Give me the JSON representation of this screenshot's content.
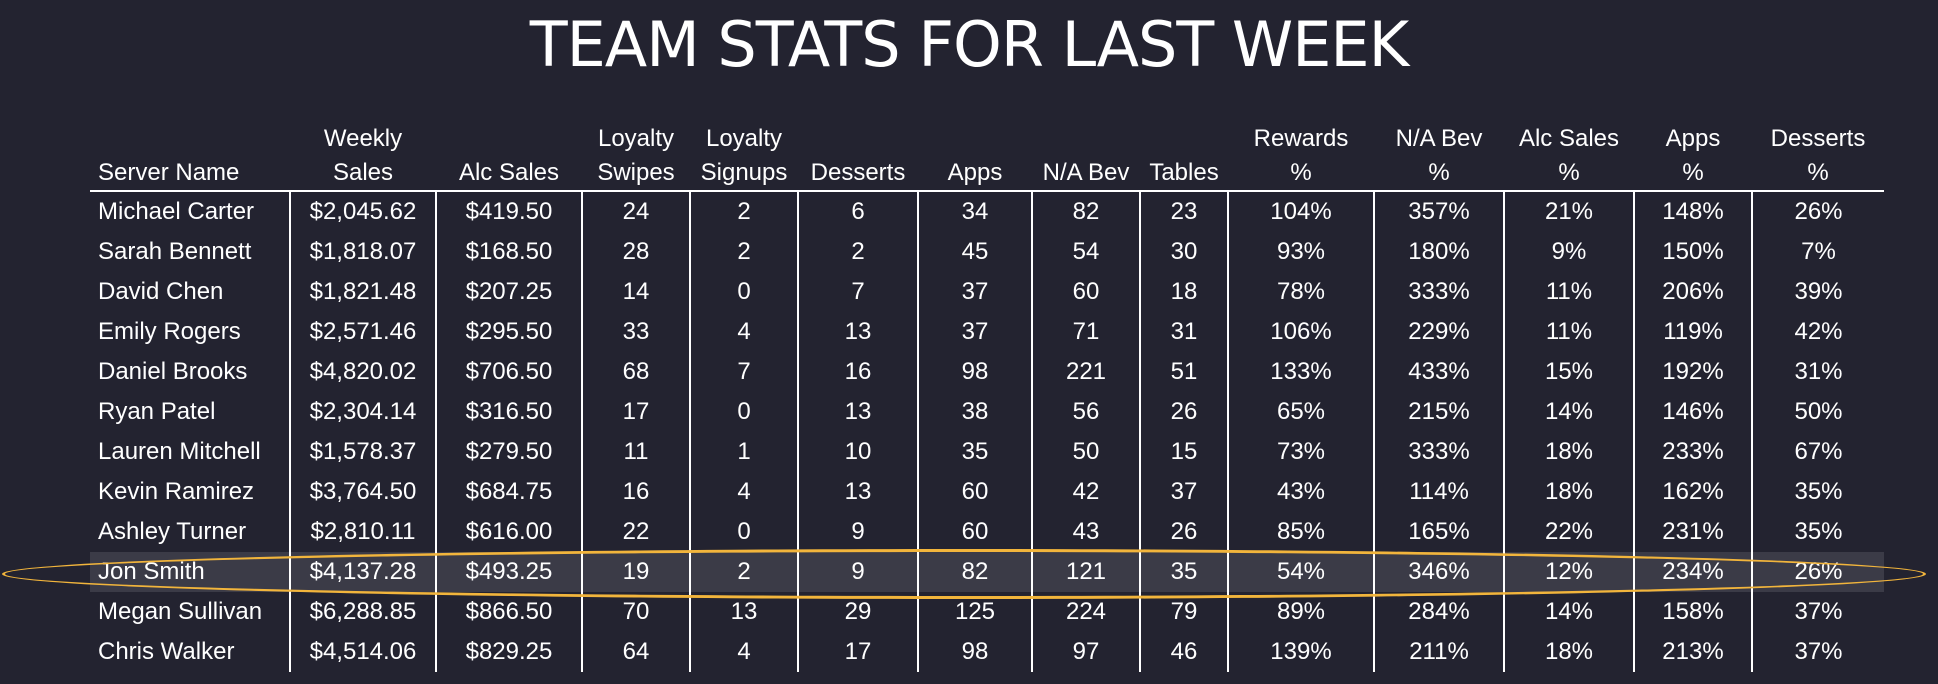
{
  "title": "TEAM STATS FOR LAST WEEK",
  "colors": {
    "background": "#232330",
    "highlight_ring": "#f2b53c",
    "highlight_row": "#3b3b47"
  },
  "columns": [
    "Server Name",
    "Weekly\nSales",
    "Alc Sales",
    "Loyalty\nSwipes",
    "Loyalty\nSignups",
    "Desserts",
    "Apps",
    "N/A Bev",
    "Tables",
    "Rewards\n%",
    "N/A Bev\n%",
    "Alc Sales\n%",
    "Apps\n%",
    "Desserts\n%"
  ],
  "rows": [
    [
      "Michael Carter",
      "$2,045.62",
      "$419.50",
      "24",
      "2",
      "6",
      "34",
      "82",
      "23",
      "104%",
      "357%",
      "21%",
      "148%",
      "26%"
    ],
    [
      "Sarah Bennett",
      "$1,818.07",
      "$168.50",
      "28",
      "2",
      "2",
      "45",
      "54",
      "30",
      "93%",
      "180%",
      "9%",
      "150%",
      "7%"
    ],
    [
      "David Chen",
      "$1,821.48",
      "$207.25",
      "14",
      "0",
      "7",
      "37",
      "60",
      "18",
      "78%",
      "333%",
      "11%",
      "206%",
      "39%"
    ],
    [
      "Emily Rogers",
      "$2,571.46",
      "$295.50",
      "33",
      "4",
      "13",
      "37",
      "71",
      "31",
      "106%",
      "229%",
      "11%",
      "119%",
      "42%"
    ],
    [
      "Daniel Brooks",
      "$4,820.02",
      "$706.50",
      "68",
      "7",
      "16",
      "98",
      "221",
      "51",
      "133%",
      "433%",
      "15%",
      "192%",
      "31%"
    ],
    [
      "Ryan Patel",
      "$2,304.14",
      "$316.50",
      "17",
      "0",
      "13",
      "38",
      "56",
      "26",
      "65%",
      "215%",
      "14%",
      "146%",
      "50%"
    ],
    [
      "Lauren Mitchell",
      "$1,578.37",
      "$279.50",
      "11",
      "1",
      "10",
      "35",
      "50",
      "15",
      "73%",
      "333%",
      "18%",
      "233%",
      "67%"
    ],
    [
      "Kevin Ramirez",
      "$3,764.50",
      "$684.75",
      "16",
      "4",
      "13",
      "60",
      "42",
      "37",
      "43%",
      "114%",
      "18%",
      "162%",
      "35%"
    ],
    [
      "Ashley Turner",
      "$2,810.11",
      "$616.00",
      "22",
      "0",
      "9",
      "60",
      "43",
      "26",
      "85%",
      "165%",
      "22%",
      "231%",
      "35%"
    ],
    [
      "Jon Smith",
      "$4,137.28",
      "$493.25",
      "19",
      "2",
      "9",
      "82",
      "121",
      "35",
      "54%",
      "346%",
      "12%",
      "234%",
      "26%"
    ],
    [
      "Megan Sullivan",
      "$6,288.85",
      "$866.50",
      "70",
      "13",
      "29",
      "125",
      "224",
      "79",
      "89%",
      "284%",
      "14%",
      "158%",
      "37%"
    ],
    [
      "Chris Walker",
      "$4,514.06",
      "$829.25",
      "64",
      "4",
      "17",
      "98",
      "97",
      "46",
      "139%",
      "211%",
      "18%",
      "213%",
      "37%"
    ]
  ],
  "highlighted_row": "Jon Smith"
}
